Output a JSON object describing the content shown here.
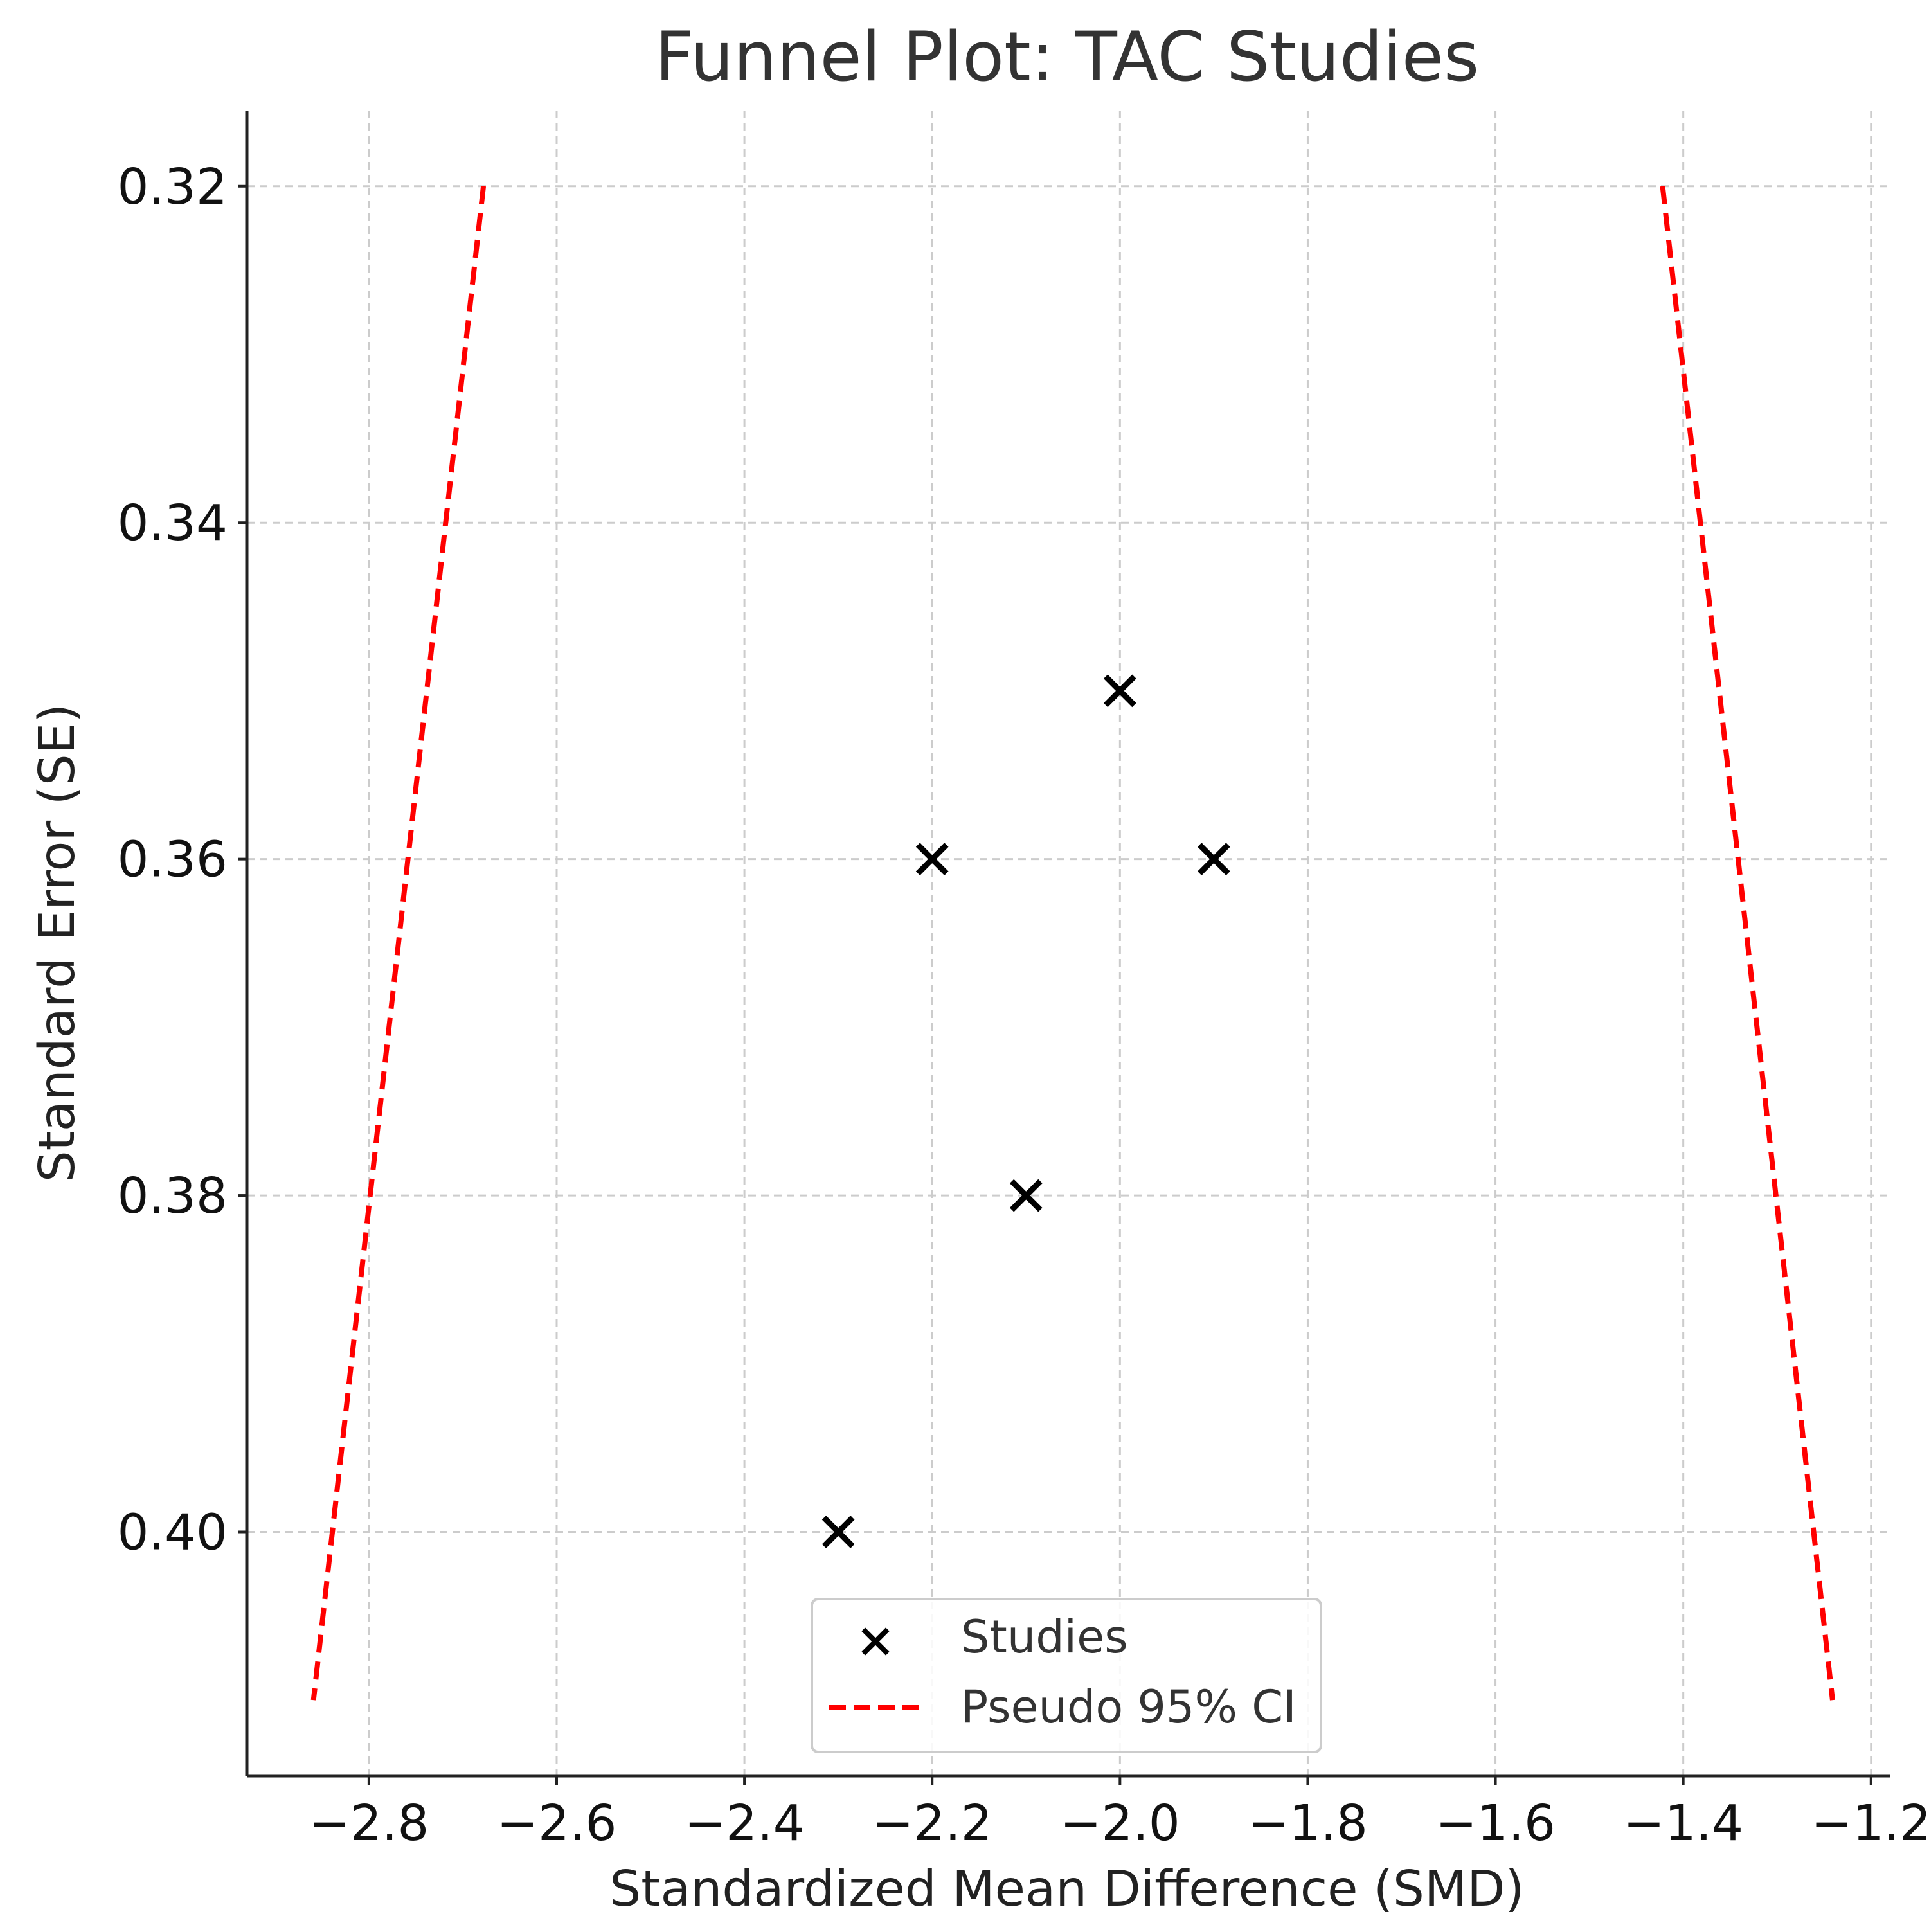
{
  "chart_data": {
    "type": "scatter",
    "title": "Funnel Plot: TAC Studies",
    "xlabel": "Standardized Mean Difference (SMD)",
    "ylabel": "Standard Error (SE)",
    "xlim": [
      -2.93,
      -1.18
    ],
    "ylim": [
      0.4145,
      0.3155
    ],
    "y_inverted": true,
    "grid": true,
    "x_ticks": [
      -2.8,
      -2.6,
      -2.4,
      -2.2,
      -2.0,
      -1.8,
      -1.6,
      -1.4,
      -1.2
    ],
    "x_tick_labels": [
      "−2.8",
      "−2.6",
      "−2.4",
      "−2.2",
      "−2.0",
      "−1.8",
      "−1.6",
      "−1.4",
      "−1.2"
    ],
    "y_ticks": [
      0.32,
      0.34,
      0.36,
      0.38,
      0.4
    ],
    "y_tick_labels": [
      "0.32",
      "0.34",
      "0.36",
      "0.38",
      "0.40"
    ],
    "series": [
      {
        "name": "Studies",
        "kind": "scatter",
        "marker": "x",
        "color": "#000000",
        "points": [
          {
            "x": -2.0,
            "y": 0.35
          },
          {
            "x": -2.2,
            "y": 0.36
          },
          {
            "x": -1.9,
            "y": 0.36
          },
          {
            "x": -2.1,
            "y": 0.38
          },
          {
            "x": -2.3,
            "y": 0.4
          }
        ]
      },
      {
        "name": "Pseudo 95% CI",
        "kind": "line",
        "style": "dashed",
        "color": "#ff0000",
        "lines": [
          [
            {
              "x": -2.678,
              "y": 0.32
            },
            {
              "x": -2.859,
              "y": 0.41
            }
          ],
          [
            {
              "x": -1.422,
              "y": 0.32
            },
            {
              "x": -1.241,
              "y": 0.41
            }
          ]
        ]
      }
    ],
    "legend": {
      "position": "lower-center",
      "entries": [
        "Studies",
        "Pseudo 95% CI"
      ]
    }
  }
}
